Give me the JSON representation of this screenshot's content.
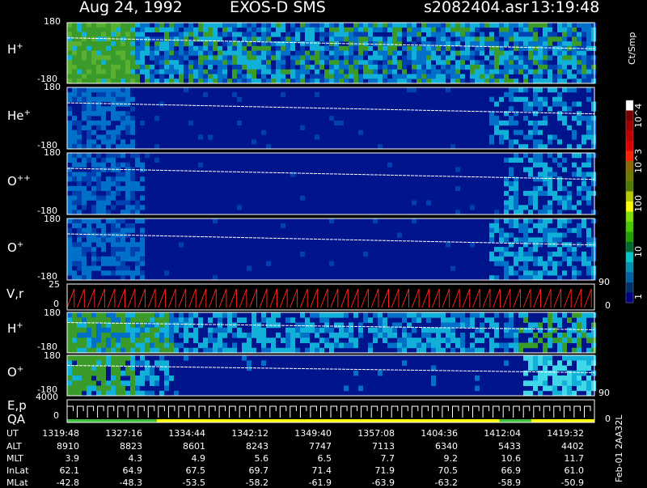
{
  "header": {
    "date": "Aug 24, 1992",
    "mission": "EXOS-D SMS",
    "file": "s2082404.asr",
    "time": "13:19:48"
  },
  "colorbar": {
    "unit": "Ct/Smp",
    "tick_labels": [
      "10^4",
      "10^3",
      "100",
      "10",
      "1"
    ],
    "colors": [
      "#ffffff",
      "#7a0000",
      "#a00000",
      "#c00000",
      "#e00000",
      "#ff2000",
      "#8a6a00",
      "#6e7a00",
      "#507a00",
      "#b8c800",
      "#ffff00",
      "#7ee000",
      "#48c800",
      "#20a000",
      "#006a30",
      "#00c8c8",
      "#0090b0",
      "#0060a0",
      "#00306a",
      "#000080"
    ]
  },
  "chart_data": [
    {
      "type": "heatmap",
      "panel": "H+",
      "species": "H",
      "charge": "+",
      "ylim": [
        -180,
        180
      ],
      "y_tick_labels": [
        "180",
        "-180"
      ],
      "colormap": "Ct/Smp log",
      "trace": "pitch angle"
    },
    {
      "type": "heatmap",
      "panel": "He+",
      "species": "He",
      "charge": "+",
      "ylim": [
        -180,
        180
      ],
      "y_tick_labels": [
        "180",
        "-180"
      ],
      "colormap": "Ct/Smp log",
      "trace": "pitch angle"
    },
    {
      "type": "heatmap",
      "panel": "O++",
      "species": "O",
      "charge": "++",
      "ylim": [
        -180,
        180
      ],
      "y_tick_labels": [
        "180",
        "-180"
      ],
      "colormap": "Ct/Smp log",
      "trace": "pitch angle"
    },
    {
      "type": "heatmap",
      "panel": "O+",
      "species": "O",
      "charge": "+",
      "ylim": [
        -180,
        180
      ],
      "y_tick_labels": [
        "180",
        "-180"
      ],
      "right_tick_labels": [
        "90"
      ],
      "colormap": "Ct/Smp log",
      "trace": "pitch angle"
    },
    {
      "type": "line",
      "panel": "V,r",
      "label": "V,r",
      "ylim": [
        0,
        25
      ],
      "y_tick_labels": [
        "25",
        "0"
      ],
      "right_tick_labels": [
        "0"
      ],
      "pattern": "sawtooth",
      "color": "#ff2020"
    },
    {
      "type": "heatmap",
      "panel": "H+ (2)",
      "species": "H",
      "charge": "+",
      "ylim": [
        -180,
        180
      ],
      "y_tick_labels": [
        "180",
        "-180"
      ],
      "colormap": "Ct/Smp log",
      "trace": "pitch angle"
    },
    {
      "type": "heatmap",
      "panel": "O+ (2)",
      "species": "O",
      "charge": "+",
      "ylim": [
        -180,
        180
      ],
      "y_tick_labels": [
        "180",
        "-180"
      ],
      "right_tick_labels": [
        "90"
      ],
      "colormap": "Ct/Smp log",
      "trace": "pitch angle"
    },
    {
      "type": "line",
      "panel": "E,p QA",
      "label_top": "E,p",
      "label_bottom": "QA",
      "ylim": [
        0,
        4000
      ],
      "y_tick_labels": [
        "4000",
        "0"
      ],
      "right_tick_labels": [
        "0"
      ],
      "pattern": "staircase",
      "color": "#ffffff",
      "qa_bar": [
        {
          "from": 0.0,
          "to": 0.17,
          "color": "#40c040"
        },
        {
          "from": 0.17,
          "to": 0.45,
          "color": "#ffff00"
        },
        {
          "from": 0.45,
          "to": 0.55,
          "color": "#ffff00"
        },
        {
          "from": 0.55,
          "to": 0.82,
          "color": "#ffff00"
        },
        {
          "from": 0.82,
          "to": 0.88,
          "color": "#40c040"
        },
        {
          "from": 0.88,
          "to": 1.0,
          "color": "#ffff00"
        }
      ]
    }
  ],
  "footer": {
    "rows": [
      {
        "label": "UT",
        "values": [
          "1319:48",
          "1327:16",
          "1334:44",
          "1342:12",
          "1349:40",
          "1357:08",
          "1404:36",
          "1412:04",
          "1419:32"
        ]
      },
      {
        "label": "ALT",
        "values": [
          "8910",
          "8823",
          "8601",
          "8243",
          "7747",
          "7113",
          "6340",
          "5433",
          "4402"
        ]
      },
      {
        "label": "MLT",
        "values": [
          "3.9",
          "4.3",
          "4.9",
          "5.6",
          "6.5",
          "7.7",
          "9.2",
          "10.6",
          "11.7"
        ]
      },
      {
        "label": "InLat",
        "values": [
          "62.1",
          "64.9",
          "67.5",
          "69.7",
          "71.4",
          "71.9",
          "70.5",
          "66.9",
          "61.0"
        ]
      },
      {
        "label": "MLat",
        "values": [
          "-42.8",
          "-48.3",
          "-53.5",
          "-58.2",
          "-61.9",
          "-63.9",
          "-63.2",
          "-58.9",
          "-50.9"
        ]
      }
    ],
    "side_note": "Feb-01 2AA32L"
  }
}
